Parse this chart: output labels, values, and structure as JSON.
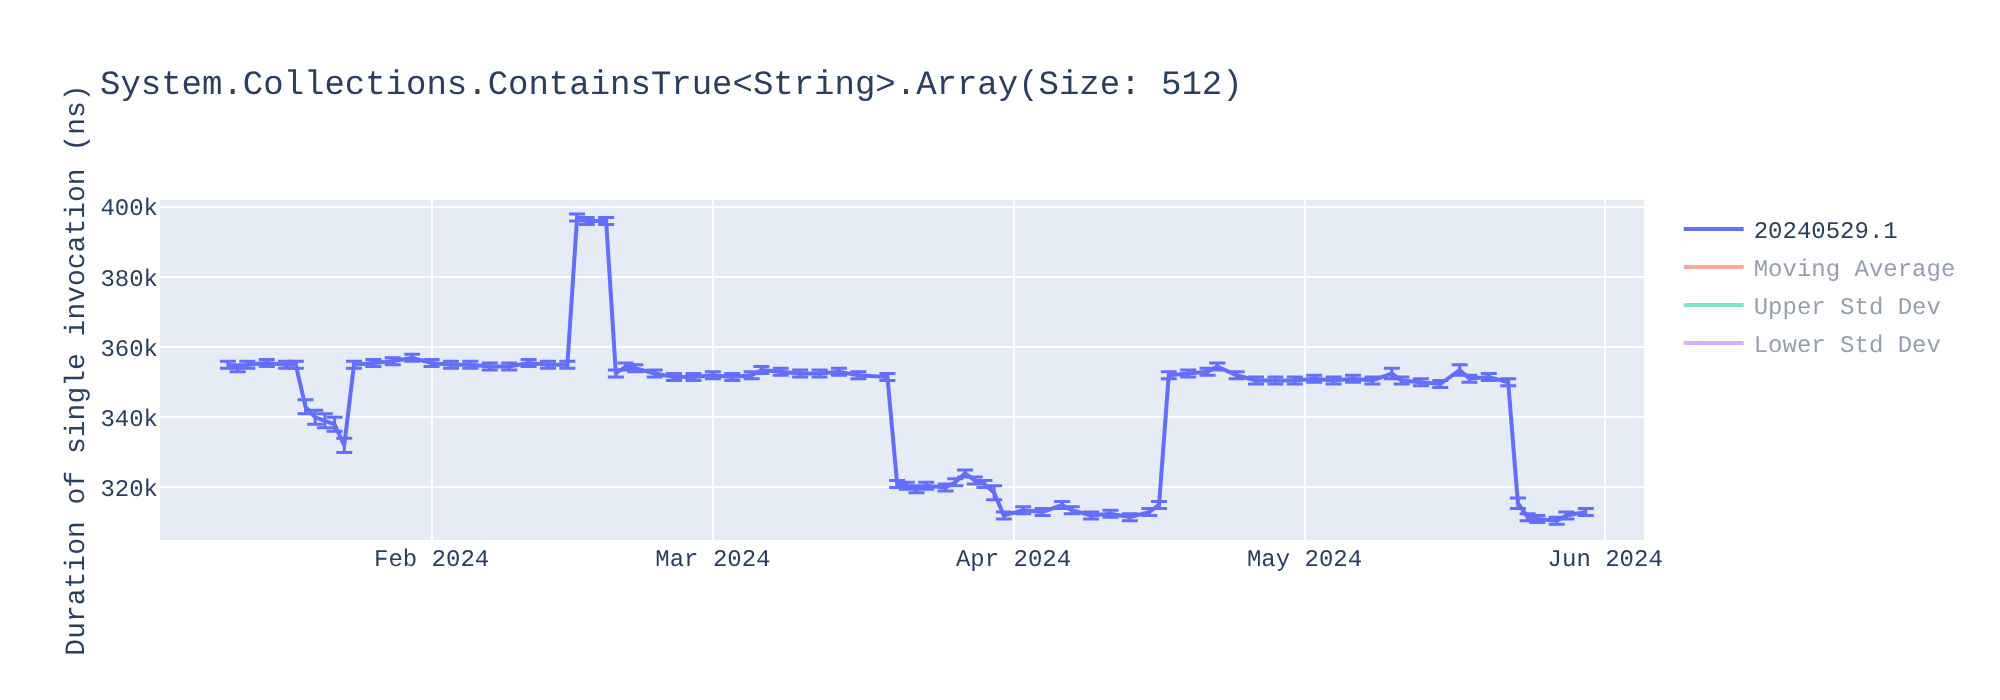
{
  "chart_data": {
    "type": "line",
    "title": "System.Collections.ContainsTrue<String>.Array(Size: 512)",
    "ylabel": "Duration of single invocation (ns)",
    "x": [
      "2024-01-11",
      "2024-01-12",
      "2024-01-13",
      "2024-01-15",
      "2024-01-17",
      "2024-01-18",
      "2024-01-19",
      "2024-01-20",
      "2024-01-21",
      "2024-01-22",
      "2024-01-23",
      "2024-01-24",
      "2024-01-26",
      "2024-01-28",
      "2024-01-30",
      "2024-02-01",
      "2024-02-03",
      "2024-02-05",
      "2024-02-07",
      "2024-02-09",
      "2024-02-11",
      "2024-02-13",
      "2024-02-15",
      "2024-02-16",
      "2024-02-17",
      "2024-02-19",
      "2024-02-20",
      "2024-02-21",
      "2024-02-22",
      "2024-02-24",
      "2024-02-26",
      "2024-02-28",
      "2024-03-01",
      "2024-03-03",
      "2024-03-05",
      "2024-03-06",
      "2024-03-08",
      "2024-03-10",
      "2024-03-12",
      "2024-03-14",
      "2024-03-16",
      "2024-03-19",
      "2024-03-20",
      "2024-03-21",
      "2024-03-22",
      "2024-03-23",
      "2024-03-25",
      "2024-03-26",
      "2024-03-27",
      "2024-03-28",
      "2024-03-29",
      "2024-03-30",
      "2024-03-31",
      "2024-04-02",
      "2024-04-04",
      "2024-04-06",
      "2024-04-07",
      "2024-04-09",
      "2024-04-11",
      "2024-04-13",
      "2024-04-15",
      "2024-04-16",
      "2024-04-17",
      "2024-04-19",
      "2024-04-21",
      "2024-04-22",
      "2024-04-24",
      "2024-04-26",
      "2024-04-28",
      "2024-04-30",
      "2024-05-02",
      "2024-05-04",
      "2024-05-06",
      "2024-05-08",
      "2024-05-10",
      "2024-05-11",
      "2024-05-13",
      "2024-05-15",
      "2024-05-17",
      "2024-05-18",
      "2024-05-20",
      "2024-05-22",
      "2024-05-23",
      "2024-05-24",
      "2024-05-25",
      "2024-05-27",
      "2024-05-28",
      "2024-05-30"
    ],
    "series": [
      {
        "name": "20240529.1",
        "color": "#636efa",
        "values": [
          355000,
          354000,
          355000,
          355500,
          355000,
          355000,
          343000,
          340000,
          339000,
          338000,
          332000,
          355000,
          355500,
          356000,
          357000,
          355500,
          355000,
          355000,
          354500,
          354500,
          355500,
          355000,
          355000,
          397000,
          396000,
          396000,
          352500,
          354500,
          354000,
          352500,
          351500,
          351500,
          352000,
          351500,
          352000,
          353500,
          353000,
          352500,
          352500,
          353000,
          352000,
          351500,
          321000,
          320500,
          319500,
          320500,
          320000,
          321500,
          324000,
          322000,
          321000,
          318500,
          312000,
          313500,
          313000,
          315000,
          313500,
          312000,
          312500,
          311500,
          313000,
          315000,
          352000,
          352500,
          353000,
          354500,
          352000,
          350500,
          350500,
          350500,
          351000,
          350500,
          351000,
          350500,
          352500,
          350500,
          350000,
          349500,
          353500,
          351000,
          351500,
          350000,
          315500,
          311500,
          311000,
          310500,
          312000,
          313000
        ],
        "errors": [
          1000,
          1000,
          1000,
          1000,
          1000,
          1000,
          2000,
          2000,
          2000,
          2000,
          2000,
          1000,
          1000,
          1000,
          1000,
          1000,
          1000,
          1000,
          1000,
          1000,
          1000,
          1000,
          1000,
          1000,
          1000,
          1000,
          1000,
          1000,
          1000,
          1000,
          1000,
          1000,
          1000,
          1000,
          1000,
          1000,
          1000,
          1000,
          1000,
          1000,
          1000,
          1000,
          1000,
          1000,
          1000,
          1000,
          1000,
          1000,
          1000,
          1000,
          1000,
          2000,
          1000,
          1000,
          1000,
          1000,
          1000,
          1000,
          1000,
          1000,
          1000,
          1000,
          1000,
          1000,
          1000,
          1000,
          1000,
          1000,
          1000,
          1000,
          1000,
          1000,
          1000,
          1000,
          1500,
          1000,
          1000,
          1000,
          1500,
          1000,
          1000,
          1000,
          1500,
          1000,
          1000,
          1000,
          1000,
          1000
        ]
      },
      {
        "name": "Moving Average",
        "color": "#ef553b",
        "values": [
          null,
          null,
          null,
          null,
          null,
          null,
          null,
          null,
          null,
          null,
          null,
          null,
          null,
          null,
          null,
          null,
          null,
          null,
          null,
          null,
          null,
          null,
          null,
          null,
          null,
          null,
          null,
          null,
          null,
          null,
          null,
          null,
          null,
          null,
          null,
          null,
          null,
          null,
          null,
          null,
          null,
          null,
          null,
          null,
          null,
          null,
          null,
          null,
          null,
          null,
          null,
          null,
          null,
          null,
          null,
          null,
          null,
          null,
          null,
          null,
          null,
          null,
          null,
          null,
          null,
          null,
          null,
          null,
          null,
          null,
          null,
          null,
          null,
          null,
          null,
          null,
          null,
          null,
          null,
          null,
          null,
          null,
          null,
          null,
          null,
          null,
          null,
          null
        ]
      },
      {
        "name": "Upper Std Dev",
        "color": "#00cc96",
        "values": [
          null,
          null,
          null,
          null,
          null,
          null,
          null,
          null,
          null,
          null,
          null,
          null,
          null,
          null,
          null,
          null,
          null,
          null,
          null,
          null,
          null,
          null,
          null,
          null,
          null,
          null,
          null,
          null,
          null,
          null,
          null,
          null,
          null,
          null,
          null,
          null,
          null,
          null,
          null,
          null,
          null,
          null,
          null,
          null,
          null,
          null,
          null,
          null,
          null,
          null,
          null,
          null,
          null,
          null,
          null,
          null,
          null,
          null,
          null,
          null,
          null,
          null,
          null,
          null,
          null,
          null,
          null,
          null,
          null,
          null,
          null,
          null,
          null,
          null,
          null,
          null,
          null,
          null,
          null,
          null,
          null,
          null,
          null,
          null,
          null,
          null,
          null,
          null
        ]
      },
      {
        "name": "Lower Std Dev",
        "color": "#ab63fa",
        "values": [
          null,
          null,
          null,
          null,
          null,
          null,
          null,
          null,
          null,
          null,
          null,
          null,
          null,
          null,
          null,
          null,
          null,
          null,
          null,
          null,
          null,
          null,
          null,
          null,
          null,
          null,
          null,
          null,
          null,
          null,
          null,
          null,
          null,
          null,
          null,
          null,
          null,
          null,
          null,
          null,
          null,
          null,
          null,
          null,
          null,
          null,
          null,
          null,
          null,
          null,
          null,
          null,
          null,
          null,
          null,
          null,
          null,
          null,
          null,
          null,
          null,
          null,
          null,
          null,
          null,
          null,
          null,
          null,
          null,
          null,
          null,
          null,
          null,
          null,
          null,
          null,
          null,
          null,
          null,
          null,
          null,
          null,
          null,
          null,
          null,
          null,
          null,
          null
        ]
      }
    ],
    "xlim": [
      "2024-01-04",
      "2024-06-05"
    ],
    "xticks": [
      {
        "value": "2024-02-01",
        "label": "Feb 2024"
      },
      {
        "value": "2024-03-01",
        "label": "Mar 2024"
      },
      {
        "value": "2024-04-01",
        "label": "Apr 2024"
      },
      {
        "value": "2024-05-01",
        "label": "May 2024"
      },
      {
        "value": "2024-06-01",
        "label": "Jun 2024"
      }
    ],
    "ylim": [
      305000,
      402000
    ],
    "yticks": [
      {
        "value": 320000,
        "label": "320k"
      },
      {
        "value": 340000,
        "label": "340k"
      },
      {
        "value": 360000,
        "label": "360k"
      },
      {
        "value": 380000,
        "label": "380k"
      },
      {
        "value": 400000,
        "label": "400k"
      }
    ],
    "grid": true,
    "legend": "top right",
    "marker": "none",
    "line_style": "solid"
  }
}
